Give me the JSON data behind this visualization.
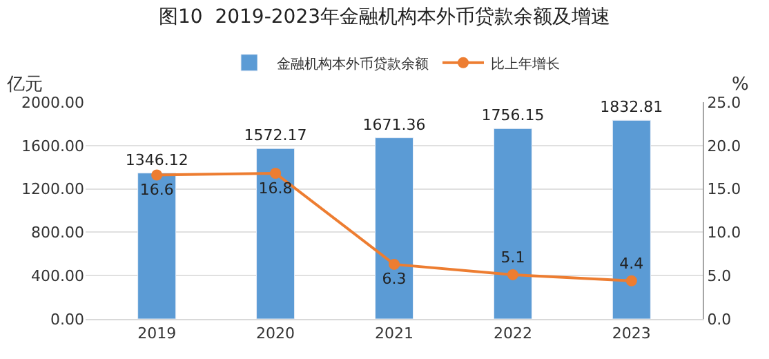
{
  "chart_data": {
    "type": "bar",
    "title": "图10  2019-2023年金融机构本外币贷款余额及增速",
    "ylabel": "亿元",
    "y2label": "%",
    "categories": [
      "2019",
      "2020",
      "2021",
      "2022",
      "2023"
    ],
    "series": [
      {
        "name": "金融机构本外币贷款余额",
        "color": "#5b9bd5",
        "values": [
          1346.12,
          1572.17,
          1671.36,
          1756.15,
          1832.81
        ]
      },
      {
        "name": "比上年增长",
        "type": "line",
        "axis": "y2",
        "color": "#ed7d31",
        "marker": "circle",
        "values": [
          16.6,
          16.8,
          6.3,
          5.1,
          4.4
        ]
      }
    ],
    "data_labels": true,
    "ylim": [
      0,
      2000
    ],
    "yticks": [
      {
        "value": 0,
        "label": "0.00"
      },
      {
        "value": 400,
        "label": "400.00"
      },
      {
        "value": 800,
        "label": "800.00"
      },
      {
        "value": 1200,
        "label": "1200.00"
      },
      {
        "value": 1600,
        "label": "1600.00"
      },
      {
        "value": 2000,
        "label": "2000.00"
      }
    ],
    "y2lim": [
      0,
      25
    ],
    "y2ticks": [
      {
        "value": 0,
        "label": "0.0"
      },
      {
        "value": 5,
        "label": "5.0"
      },
      {
        "value": 10,
        "label": "10.0"
      },
      {
        "value": 15,
        "label": "15.0"
      },
      {
        "value": 20,
        "label": "20.0"
      },
      {
        "value": 25,
        "label": "25.0"
      }
    ],
    "grid": "y",
    "legend": "top"
  }
}
